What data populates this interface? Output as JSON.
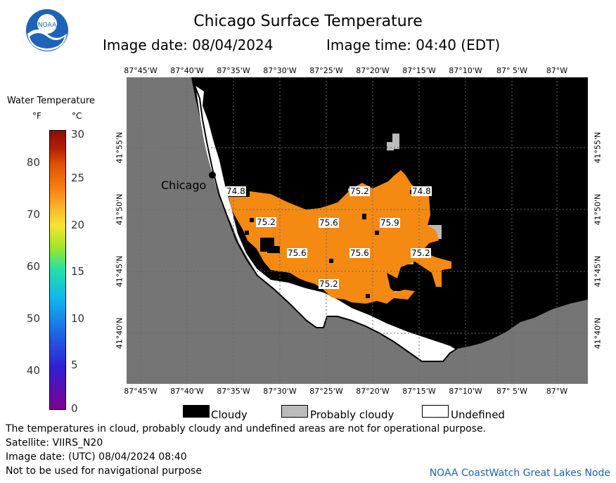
{
  "title": "Chicago Surface Temperature",
  "image_date": "Image date: 08/04/2024",
  "image_time": "Image time: 04:40 (EDT)",
  "logo_text": "NOAA",
  "legend": {
    "title": "Water Temperature",
    "unit_f": "°F",
    "unit_c": "°C",
    "f_ticks": [
      "80",
      "70",
      "60",
      "50",
      "40"
    ],
    "c_ticks": [
      "30",
      "25",
      "20",
      "15",
      "10",
      "5",
      "0"
    ]
  },
  "lon_labels": [
    "87°45'W",
    "87°40'W",
    "87°35'W",
    "87°30'W",
    "87°25'W",
    "87°20'W",
    "87°15'W",
    "87°10'W",
    "87° 5'W",
    "87°W"
  ],
  "lat_labels": [
    "41°55'N",
    "41°50'N",
    "41°45'N",
    "41°40'N"
  ],
  "city": "Chicago",
  "temp_labels": [
    "74.8",
    "75.2",
    "74.8",
    "75.2",
    "75.6",
    "75.9",
    "75.6",
    "75.6",
    "75.2",
    "75.2"
  ],
  "cloud_legend": {
    "cloudy": "Cloudy",
    "probably_cloudy": "Probably cloudy",
    "undefined": "Undefined"
  },
  "footer": {
    "line1": "The temperatures in cloud, probably cloudy and undefined areas are not for operational purpose.",
    "line2": "Satellite: VIIRS_N20",
    "line3": "Image date: (UTC) 08/04/2024  08:40",
    "line4": "Not to be used for navigational purpose",
    "credit": "NOAA CoastWatch Great Lakes Node"
  },
  "colors": {
    "land": "#757575",
    "cloud": "#000000",
    "probably_cloudy": "#bbbbbb",
    "undefined": "#ffffff",
    "water_warm": "#f58a12"
  }
}
